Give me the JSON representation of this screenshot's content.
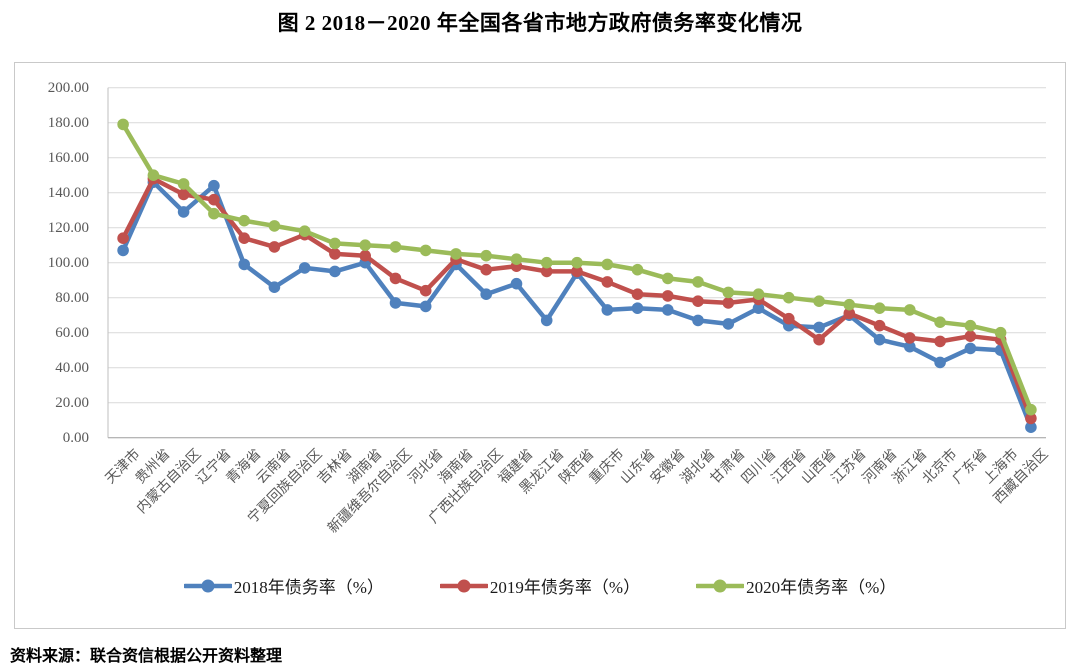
{
  "title": "图 2  2018－2020 年全国各省市地方政府债务率变化情况",
  "source": "资料来源：联合资信根据公开资料整理",
  "colors": {
    "series_2018": "#4F81BD",
    "series_2019": "#C0504D",
    "series_2020": "#9BBB59",
    "gridline": "#D9D9D9",
    "axis_line": "#9e9e9e",
    "tick_text": "#595959"
  },
  "y_axis_labels": [
    "0.00",
    "20.00",
    "40.00",
    "60.00",
    "80.00",
    "100.00",
    "120.00",
    "140.00",
    "160.00",
    "180.00",
    "200.00"
  ],
  "chart_data": {
    "type": "line",
    "title": "图 2  2018－2020 年全国各省市地方政府债务率变化情况",
    "xlabel": "",
    "ylabel": "",
    "ylim": [
      0,
      200
    ],
    "ytick_step": 20,
    "grid": true,
    "legend_position": "bottom",
    "categories": [
      "天津市",
      "贵州省",
      "内蒙古自治区",
      "辽宁省",
      "青海省",
      "云南省",
      "宁夏回族自治区",
      "吉林省",
      "湖南省",
      "新疆维吾尔自治区",
      "河北省",
      "海南省",
      "广西壮族自治区",
      "福建省",
      "黑龙江省",
      "陕西省",
      "重庆市",
      "山东省",
      "安徽省",
      "湖北省",
      "甘肃省",
      "四川省",
      "江西省",
      "山西省",
      "江苏省",
      "河南省",
      "浙江省",
      "北京市",
      "广东省",
      "上海市",
      "西藏自治区"
    ],
    "series": [
      {
        "name": "2018年债务率（%）",
        "color": "#4F81BD",
        "values": [
          107,
          146,
          129,
          144,
          99,
          86,
          97,
          95,
          100,
          77,
          75,
          99,
          82,
          88,
          67,
          94,
          73,
          74,
          73,
          67,
          65,
          74,
          64,
          63,
          70,
          56,
          52,
          43,
          51,
          50,
          6
        ]
      },
      {
        "name": "2019年债务率（%）",
        "color": "#C0504D",
        "values": [
          114,
          148,
          139,
          136,
          114,
          109,
          116,
          105,
          104,
          91,
          84,
          102,
          96,
          98,
          95,
          95,
          89,
          82,
          81,
          78,
          77,
          79,
          68,
          56,
          71,
          64,
          57,
          55,
          58,
          56,
          11
        ]
      },
      {
        "name": "2020年债务率（%）",
        "color": "#9BBB59",
        "values": [
          179,
          150,
          145,
          128,
          124,
          121,
          118,
          111,
          110,
          109,
          107,
          105,
          104,
          102,
          100,
          100,
          99,
          96,
          91,
          89,
          83,
          82,
          80,
          78,
          76,
          74,
          73,
          66,
          64,
          60,
          16
        ]
      }
    ]
  }
}
